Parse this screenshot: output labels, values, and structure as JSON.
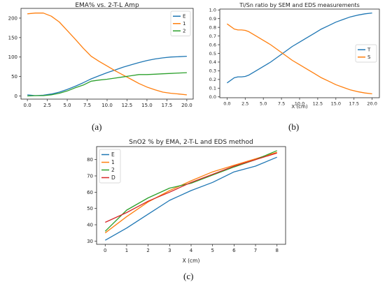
{
  "chart_data": [
    {
      "type": "line",
      "title": "EMA% vs. 2-T-L Amp",
      "xlabel": "",
      "ylabel": "",
      "xlim": [
        -0.8,
        20.8
      ],
      "ylim": [
        -8,
        225
      ],
      "xticks": [
        "0.0",
        "2.5",
        "5.0",
        "7.5",
        "10.0",
        "12.5",
        "15.0",
        "17.5",
        "20.0"
      ],
      "yticks": [
        "0",
        "50",
        "100",
        "150",
        "200"
      ],
      "legend_position": "top-right",
      "grid": false,
      "x": [
        0,
        1,
        2,
        3,
        4,
        5,
        6,
        7,
        8,
        9,
        10,
        11,
        12,
        13,
        14,
        15,
        16,
        17,
        18,
        19,
        20
      ],
      "series": [
        {
          "name": "E",
          "color": "#1f77b4",
          "values": [
            3,
            1,
            2,
            5,
            10,
            17,
            25,
            34,
            44,
            52,
            60,
            67,
            74,
            80,
            86,
            91,
            95,
            98,
            100,
            101,
            102
          ]
        },
        {
          "name": "1",
          "color": "#ff7f0e",
          "values": [
            211,
            213,
            213,
            205,
            190,
            168,
            146,
            123,
            102,
            89,
            77,
            65,
            54,
            43,
            32,
            23,
            16,
            10,
            7,
            5,
            3
          ]
        },
        {
          "name": "2",
          "color": "#2ca02c",
          "values": [
            0,
            1,
            1,
            3,
            7,
            13,
            21,
            28,
            38,
            41,
            43,
            46,
            49,
            52,
            55,
            55,
            56,
            57,
            58,
            59,
            60
          ]
        }
      ]
    },
    {
      "type": "line",
      "title": "Ti/Sn ratio by SEM and EDS measurements",
      "xlabel": "X (cm)",
      "ylabel": "",
      "xlim": [
        -1.0,
        21.0
      ],
      "ylim": [
        -0.01,
        1.01
      ],
      "xticks": [
        "0.0",
        "2.5",
        "5.0",
        "7.5",
        "10.0",
        "12.5",
        "15.0",
        "17.5",
        "20.0"
      ],
      "yticks": [
        "0.0",
        "0.1",
        "0.2",
        "0.3",
        "0.4",
        "0.5",
        "0.6",
        "0.7",
        "0.8",
        "0.9",
        "1.0"
      ],
      "legend_position": "center-right",
      "grid": false,
      "x": [
        0,
        1,
        1.5,
        2,
        2.5,
        3,
        4,
        5,
        6,
        7,
        8,
        9,
        10,
        11,
        12,
        13,
        14,
        15,
        16,
        17,
        18,
        19,
        20
      ],
      "series": [
        {
          "name": "T",
          "color": "#1f77b4",
          "values": [
            0.16,
            0.22,
            0.23,
            0.23,
            0.235,
            0.25,
            0.3,
            0.35,
            0.4,
            0.46,
            0.52,
            0.58,
            0.63,
            0.68,
            0.73,
            0.78,
            0.82,
            0.86,
            0.89,
            0.92,
            0.94,
            0.955,
            0.965
          ]
        },
        {
          "name": "S",
          "color": "#ff7f0e",
          "values": [
            0.84,
            0.78,
            0.77,
            0.77,
            0.765,
            0.75,
            0.7,
            0.65,
            0.6,
            0.54,
            0.48,
            0.42,
            0.37,
            0.32,
            0.27,
            0.22,
            0.18,
            0.14,
            0.11,
            0.08,
            0.06,
            0.045,
            0.035
          ]
        }
      ]
    },
    {
      "type": "line",
      "title": "SnO2 % by EMA, 2-T-L  and EDS method",
      "xlabel": "X (cm)",
      "ylabel": "",
      "xlim": [
        -0.4,
        8.4
      ],
      "ylim": [
        28,
        88
      ],
      "xticks": [
        "0",
        "1",
        "2",
        "3",
        "4",
        "5",
        "6",
        "7",
        "8"
      ],
      "yticks": [
        "30",
        "40",
        "50",
        "60",
        "70",
        "80"
      ],
      "legend_position": "top-left",
      "grid": false,
      "x": [
        0,
        1,
        2,
        3,
        4,
        5,
        6,
        7,
        8
      ],
      "series": [
        {
          "name": "E",
          "color": "#1f77b4",
          "values": [
            30.5,
            38,
            46.5,
            55,
            61,
            66,
            72.5,
            76,
            81.5
          ]
        },
        {
          "name": "1",
          "color": "#ff7f0e",
          "values": [
            35,
            45,
            54,
            61,
            67,
            72.5,
            76.5,
            80.5,
            84.5
          ]
        },
        {
          "name": "2",
          "color": "#2ca02c",
          "values": [
            36,
            49,
            56.5,
            62.5,
            65.5,
            70.5,
            75.5,
            80,
            85.5
          ]
        },
        {
          "name": "D",
          "color": "#d62728",
          "values": [
            41.5,
            47.5,
            54.5,
            60,
            66,
            71,
            76,
            80,
            84
          ]
        }
      ]
    }
  ],
  "captions": [
    "(a)",
    "(b)",
    "(c)"
  ]
}
